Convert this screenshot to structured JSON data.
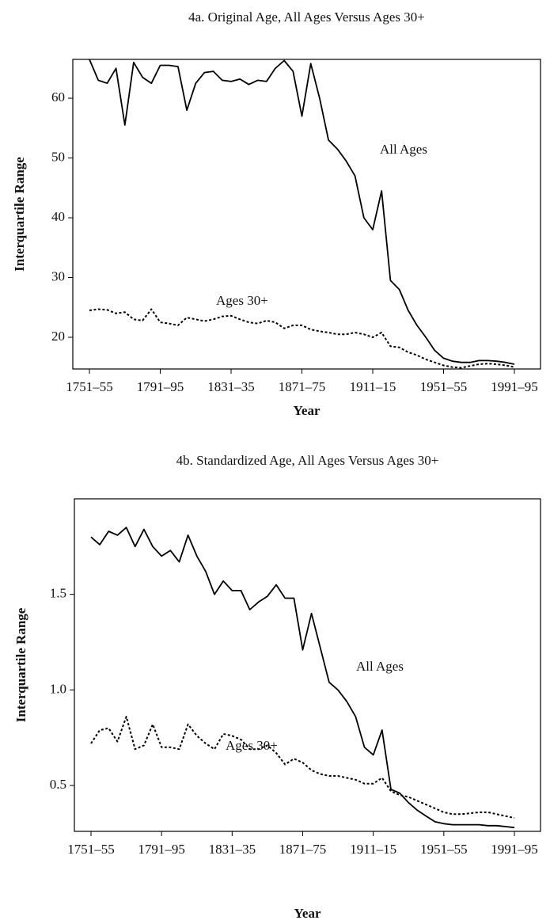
{
  "chart_data": [
    {
      "type": "line",
      "title": "4a. Original Age, All Ages Versus Ages 30+",
      "xlabel": "Year",
      "ylabel": "Interquartile Range",
      "categories": [
        "1751–55",
        null,
        null,
        null,
        null,
        null,
        null,
        null,
        "1791–95",
        null,
        null,
        null,
        null,
        null,
        null,
        null,
        "1831–35",
        null,
        null,
        null,
        null,
        null,
        null,
        null,
        "1871–75",
        null,
        null,
        null,
        null,
        null,
        null,
        null,
        "1911–15",
        null,
        null,
        null,
        null,
        null,
        null,
        null,
        "1951–55",
        null,
        null,
        null,
        null,
        null,
        null,
        null,
        "1991–95"
      ],
      "series": [
        {
          "name": "All Ages",
          "color": "#000000",
          "style": "solid",
          "values": [
            66.5,
            63,
            62.5,
            65,
            55.5,
            66,
            63.5,
            62.5,
            65.5,
            65.5,
            65.3,
            58,
            62.5,
            64.3,
            64.5,
            63,
            62.8,
            63.2,
            62.3,
            63,
            62.8,
            65,
            66.3,
            64.5,
            57,
            65.8,
            60,
            53,
            51.5,
            49.5,
            47,
            40,
            38,
            44.5,
            29.5,
            28,
            24.5,
            22,
            20,
            17.8,
            16.5,
            16,
            15.8,
            15.8,
            16.1,
            16.1,
            16,
            15.8,
            15.5
          ]
        },
        {
          "name": "Ages 30+",
          "color": "#000000",
          "style": "dashed",
          "values": [
            24.5,
            24.7,
            24.6,
            24,
            24.2,
            23,
            22.8,
            24.7,
            22.5,
            22.3,
            22,
            23.3,
            23,
            22.7,
            23,
            23.5,
            23.6,
            23,
            22.5,
            22.3,
            22.8,
            22.5,
            21.5,
            22,
            22,
            21.3,
            21,
            20.8,
            20.5,
            20.5,
            20.8,
            20.5,
            20,
            20.8,
            18.5,
            18.3,
            17.5,
            17,
            16.3,
            15.8,
            15.3,
            15,
            14.9,
            15.2,
            15.5,
            15.6,
            15.5,
            15.3,
            15
          ]
        }
      ],
      "ylim": [
        14.7,
        66.5
      ],
      "yticks": [
        20,
        30,
        40,
        50,
        60
      ]
    },
    {
      "type": "line",
      "title": "4b. Standardized Age, All Ages Versus Ages 30+",
      "xlabel": "Year",
      "ylabel": "Interquartile Range",
      "categories": [
        "1751–55",
        null,
        null,
        null,
        null,
        null,
        null,
        null,
        "1791–95",
        null,
        null,
        null,
        null,
        null,
        null,
        null,
        "1831–35",
        null,
        null,
        null,
        null,
        null,
        null,
        null,
        "1871–75",
        null,
        null,
        null,
        null,
        null,
        null,
        null,
        "1911–15",
        null,
        null,
        null,
        null,
        null,
        null,
        null,
        "1951–55",
        null,
        null,
        null,
        null,
        null,
        null,
        null,
        "1991–95"
      ],
      "series": [
        {
          "name": "All Ages",
          "color": "#000000",
          "style": "solid",
          "values": [
            1.8,
            1.76,
            1.83,
            1.81,
            1.85,
            1.75,
            1.84,
            1.75,
            1.7,
            1.73,
            1.67,
            1.81,
            1.7,
            1.62,
            1.5,
            1.57,
            1.52,
            1.52,
            1.42,
            1.46,
            1.49,
            1.55,
            1.48,
            1.48,
            1.21,
            1.4,
            1.22,
            1.04,
            1,
            0.94,
            0.86,
            0.7,
            0.66,
            0.79,
            0.48,
            0.46,
            0.41,
            0.37,
            0.34,
            0.31,
            0.3,
            0.295,
            0.295,
            0.295,
            0.295,
            0.29,
            0.29,
            0.285,
            0.28
          ]
        },
        {
          "name": "Ages 30+",
          "color": "#000000",
          "style": "dashed",
          "values": [
            0.72,
            0.79,
            0.8,
            0.73,
            0.86,
            0.69,
            0.71,
            0.82,
            0.7,
            0.7,
            0.69,
            0.82,
            0.76,
            0.72,
            0.69,
            0.77,
            0.76,
            0.74,
            0.69,
            0.69,
            0.71,
            0.67,
            0.61,
            0.64,
            0.62,
            0.58,
            0.56,
            0.55,
            0.55,
            0.54,
            0.53,
            0.51,
            0.51,
            0.54,
            0.47,
            0.45,
            0.44,
            0.42,
            0.4,
            0.38,
            0.36,
            0.35,
            0.35,
            0.355,
            0.36,
            0.36,
            0.35,
            0.34,
            0.33
          ]
        }
      ],
      "ylim": [
        0.26,
        2.0
      ],
      "yticks": [
        0.5,
        {
          "value": 1,
          "label": "1.0"
        },
        1.5
      ]
    }
  ]
}
